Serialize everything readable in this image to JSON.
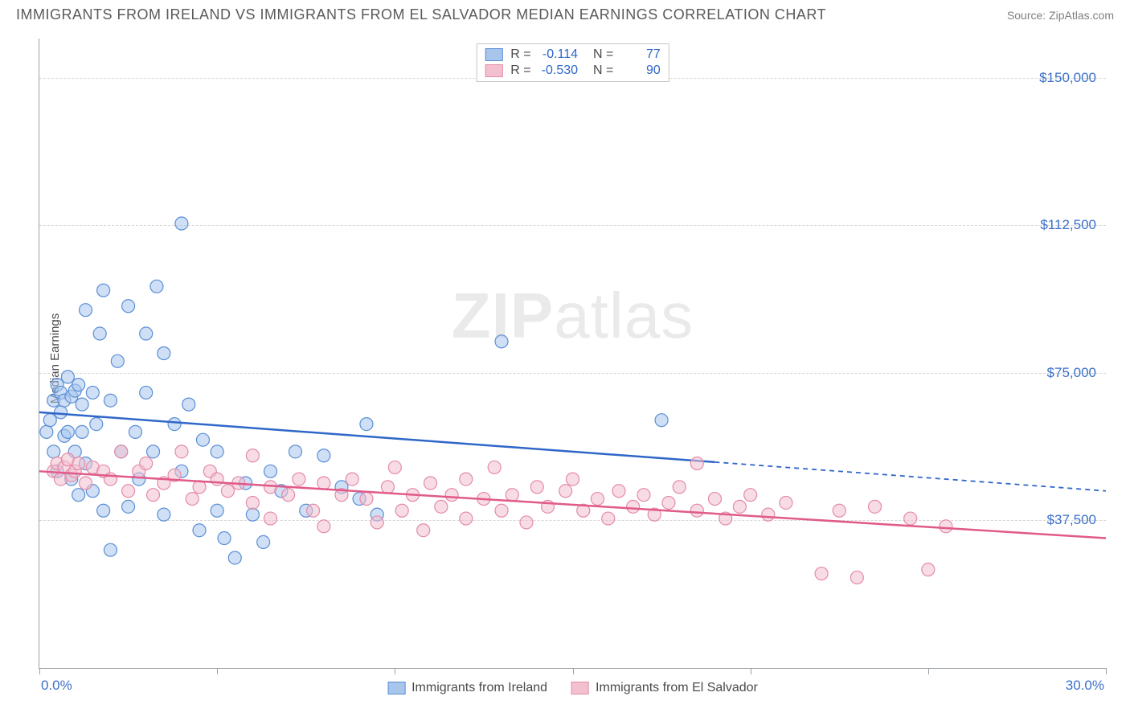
{
  "title": "IMMIGRANTS FROM IRELAND VS IMMIGRANTS FROM EL SALVADOR MEDIAN EARNINGS CORRELATION CHART",
  "source": "Source: ZipAtlas.com",
  "ylabel": "Median Earnings",
  "watermark_a": "ZIP",
  "watermark_b": "atlas",
  "chart": {
    "type": "scatter",
    "xlim": [
      0,
      30
    ],
    "ylim": [
      0,
      160000
    ],
    "x_ticks": [
      0,
      5,
      10,
      15,
      20,
      25,
      30
    ],
    "x_tick_labels": {
      "0": "0.0%",
      "30": "30.0%"
    },
    "y_grid": [
      37500,
      75000,
      112500,
      150000
    ],
    "y_grid_labels": [
      "$37,500",
      "$75,000",
      "$112,500",
      "$150,000"
    ],
    "grid_color": "#d6d6d6",
    "axis_color": "#9aa0a6",
    "background_color": "#ffffff",
    "tick_label_color": "#3b6fc9",
    "marker_radius": 8,
    "marker_opacity": 0.55,
    "series": [
      {
        "id": "ireland",
        "label": "Immigrants from Ireland",
        "fill": "#a8c5ec",
        "stroke": "#5a8fd6",
        "line_color": "#2f67c9",
        "R": "-0.114",
        "N": "77",
        "trend": {
          "x1": 0,
          "y1": 65000,
          "x2": 30,
          "y2": 45000,
          "solid_until_x": 19
        },
        "points": [
          [
            0.2,
            60000
          ],
          [
            0.3,
            63000
          ],
          [
            0.4,
            68000
          ],
          [
            0.4,
            55000
          ],
          [
            0.5,
            72000
          ],
          [
            0.5,
            50000
          ],
          [
            0.6,
            70000
          ],
          [
            0.6,
            65000
          ],
          [
            0.7,
            59000
          ],
          [
            0.7,
            68000
          ],
          [
            0.8,
            74000
          ],
          [
            0.8,
            60000
          ],
          [
            0.9,
            48000
          ],
          [
            0.9,
            69000
          ],
          [
            1.0,
            70500
          ],
          [
            1.0,
            55000
          ],
          [
            1.1,
            72000
          ],
          [
            1.1,
            44000
          ],
          [
            1.2,
            67000
          ],
          [
            1.2,
            60000
          ],
          [
            1.3,
            91000
          ],
          [
            1.3,
            52000
          ],
          [
            1.5,
            70000
          ],
          [
            1.5,
            45000
          ],
          [
            1.6,
            62000
          ],
          [
            1.7,
            85000
          ],
          [
            1.8,
            96000
          ],
          [
            1.8,
            40000
          ],
          [
            2.0,
            68000
          ],
          [
            2.0,
            30000
          ],
          [
            2.2,
            78000
          ],
          [
            2.3,
            55000
          ],
          [
            2.5,
            92000
          ],
          [
            2.5,
            41000
          ],
          [
            2.7,
            60000
          ],
          [
            2.8,
            48000
          ],
          [
            3.0,
            85000
          ],
          [
            3.0,
            70000
          ],
          [
            3.2,
            55000
          ],
          [
            3.3,
            97000
          ],
          [
            3.5,
            80000
          ],
          [
            3.5,
            39000
          ],
          [
            3.8,
            62000
          ],
          [
            4.0,
            113000
          ],
          [
            4.0,
            50000
          ],
          [
            4.2,
            67000
          ],
          [
            4.5,
            35000
          ],
          [
            4.6,
            58000
          ],
          [
            5.0,
            40000
          ],
          [
            5.0,
            55000
          ],
          [
            5.2,
            33000
          ],
          [
            5.5,
            28000
          ],
          [
            5.8,
            47000
          ],
          [
            6.0,
            39000
          ],
          [
            6.3,
            32000
          ],
          [
            6.5,
            50000
          ],
          [
            6.8,
            45000
          ],
          [
            7.2,
            55000
          ],
          [
            7.5,
            40000
          ],
          [
            8.0,
            54000
          ],
          [
            8.5,
            46000
          ],
          [
            9.0,
            43000
          ],
          [
            9.2,
            62000
          ],
          [
            9.5,
            39000
          ],
          [
            13.0,
            83000
          ],
          [
            17.5,
            63000
          ]
        ]
      },
      {
        "id": "elsalvador",
        "label": "Immigrants from El Salvador",
        "fill": "#f3c0cf",
        "stroke": "#e48ba6",
        "line_color": "#e05a8a",
        "R": "-0.530",
        "N": "90",
        "trend": {
          "x1": 0,
          "y1": 50000,
          "x2": 30,
          "y2": 33000,
          "solid_until_x": 30
        },
        "points": [
          [
            0.4,
            50000
          ],
          [
            0.5,
            52000
          ],
          [
            0.6,
            48000
          ],
          [
            0.7,
            51000
          ],
          [
            0.8,
            53000
          ],
          [
            0.9,
            49000
          ],
          [
            1.0,
            50000
          ],
          [
            1.1,
            52000
          ],
          [
            1.3,
            47000
          ],
          [
            1.5,
            51000
          ],
          [
            1.8,
            50000
          ],
          [
            2.0,
            48000
          ],
          [
            2.3,
            55000
          ],
          [
            2.5,
            45000
          ],
          [
            2.8,
            50000
          ],
          [
            3.0,
            52000
          ],
          [
            3.2,
            44000
          ],
          [
            3.5,
            47000
          ],
          [
            3.8,
            49000
          ],
          [
            4.0,
            55000
          ],
          [
            4.3,
            43000
          ],
          [
            4.5,
            46000
          ],
          [
            4.8,
            50000
          ],
          [
            5.0,
            48000
          ],
          [
            5.3,
            45000
          ],
          [
            5.6,
            47000
          ],
          [
            6.0,
            42000
          ],
          [
            6.0,
            54000
          ],
          [
            6.5,
            46000
          ],
          [
            6.5,
            38000
          ],
          [
            7.0,
            44000
          ],
          [
            7.3,
            48000
          ],
          [
            7.7,
            40000
          ],
          [
            8.0,
            47000
          ],
          [
            8.0,
            36000
          ],
          [
            8.5,
            44000
          ],
          [
            8.8,
            48000
          ],
          [
            9.2,
            43000
          ],
          [
            9.5,
            37000
          ],
          [
            9.8,
            46000
          ],
          [
            10.0,
            51000
          ],
          [
            10.2,
            40000
          ],
          [
            10.5,
            44000
          ],
          [
            10.8,
            35000
          ],
          [
            11.0,
            47000
          ],
          [
            11.3,
            41000
          ],
          [
            11.6,
            44000
          ],
          [
            12.0,
            48000
          ],
          [
            12.0,
            38000
          ],
          [
            12.5,
            43000
          ],
          [
            12.8,
            51000
          ],
          [
            13.0,
            40000
          ],
          [
            13.3,
            44000
          ],
          [
            13.7,
            37000
          ],
          [
            14.0,
            46000
          ],
          [
            14.3,
            41000
          ],
          [
            14.8,
            45000
          ],
          [
            15.0,
            48000
          ],
          [
            15.3,
            40000
          ],
          [
            15.7,
            43000
          ],
          [
            16.0,
            38000
          ],
          [
            16.3,
            45000
          ],
          [
            16.7,
            41000
          ],
          [
            17.0,
            44000
          ],
          [
            17.3,
            39000
          ],
          [
            17.7,
            42000
          ],
          [
            18.0,
            46000
          ],
          [
            18.5,
            40000
          ],
          [
            18.5,
            52000
          ],
          [
            19.0,
            43000
          ],
          [
            19.3,
            38000
          ],
          [
            19.7,
            41000
          ],
          [
            20.0,
            44000
          ],
          [
            20.5,
            39000
          ],
          [
            21.0,
            42000
          ],
          [
            22.0,
            24000
          ],
          [
            22.5,
            40000
          ],
          [
            23.0,
            23000
          ],
          [
            23.5,
            41000
          ],
          [
            24.5,
            38000
          ],
          [
            25.0,
            25000
          ],
          [
            25.5,
            36000
          ]
        ]
      }
    ]
  },
  "legend_top": {
    "r_label": "R =",
    "n_label": "N ="
  }
}
